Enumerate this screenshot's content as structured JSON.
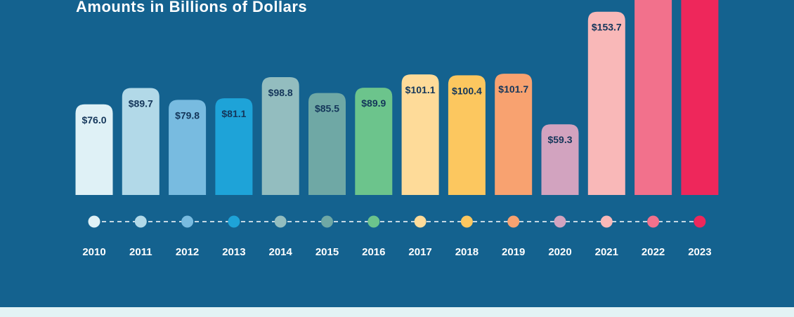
{
  "header": {
    "subtitle": "Amounts in Billions of Dollars"
  },
  "chart_data": {
    "type": "bar",
    "title": "",
    "subtitle": "Amounts in Billions of Dollars",
    "xlabel": "",
    "ylabel": "",
    "grid": false,
    "legend": "none",
    "categories": [
      "2010",
      "2011",
      "2012",
      "2013",
      "2014",
      "2015",
      "2016",
      "2017",
      "2018",
      "2019",
      "2020",
      "2021",
      "2022",
      "2023"
    ],
    "values": [
      76.0,
      89.7,
      79.8,
      81.1,
      98.8,
      85.5,
      89.9,
      101.1,
      100.4,
      101.7,
      59.3,
      153.7,
      null,
      null
    ],
    "value_labels": [
      "$76.0",
      "$89.7",
      "$79.8",
      "$81.1",
      "$98.8",
      "$85.5",
      "$89.9",
      "$101.1",
      "$100.4",
      "$101.7",
      "$59.3",
      "$153.7",
      "",
      ""
    ],
    "colors": [
      "#dff1f6",
      "#b2d9e8",
      "#78bbe0",
      "#1ea3d8",
      "#93bdbf",
      "#6fa8a5",
      "#6cc48c",
      "#fedb99",
      "#fcc75f",
      "#f8a270",
      "#d2a3bf",
      "#f9b8b8",
      "#f2718c",
      "#ee275b"
    ],
    "background": "#14628f"
  }
}
